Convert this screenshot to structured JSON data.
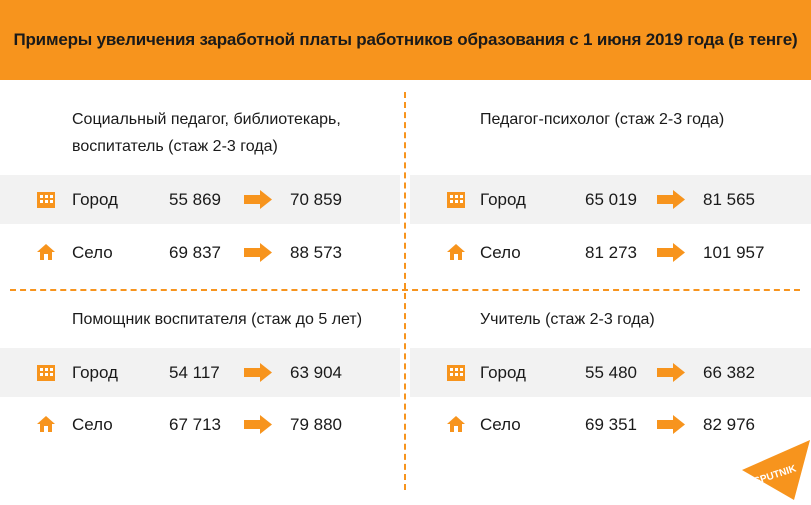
{
  "header": {
    "title": "Примеры увеличения заработной платы работников образования с 1 июня 2019 года (в тенге)"
  },
  "colors": {
    "accent": "#f7941d",
    "row_shade": "#f2f2f2",
    "text": "#1a1a1a"
  },
  "icons": {
    "city": "building-icon",
    "village": "house-icon",
    "change": "arrow-right-icon"
  },
  "sections": [
    {
      "title_lines": [
        "Социальный педагог, библиотекарь,",
        "воспитатель (стаж 2-3 года)"
      ],
      "rows": [
        {
          "label": "Город",
          "old": "55 869",
          "new": "70 859"
        },
        {
          "label": "Село",
          "old": "69 837",
          "new": "88 573"
        }
      ]
    },
    {
      "title_lines": [
        "Педагог-психолог (стаж 2-3 года)"
      ],
      "rows": [
        {
          "label": "Город",
          "old": "65 019",
          "new": "81 565"
        },
        {
          "label": "Село",
          "old": "81 273",
          "new": "101 957"
        }
      ]
    },
    {
      "title_lines": [
        "Помощник воспитателя (стаж до 5 лет)"
      ],
      "rows": [
        {
          "label": "Город",
          "old": "54 117",
          "new": "63 904"
        },
        {
          "label": "Село",
          "old": "67 713",
          "new": "79 880"
        }
      ]
    },
    {
      "title_lines": [
        "Учитель (стаж 2-3 года)"
      ],
      "rows": [
        {
          "label": "Город",
          "old": "55 480",
          "new": "66 382"
        },
        {
          "label": "Село",
          "old": "69 351",
          "new": "82 976"
        }
      ]
    }
  ],
  "logo": {
    "text": "SPUTNIK"
  }
}
